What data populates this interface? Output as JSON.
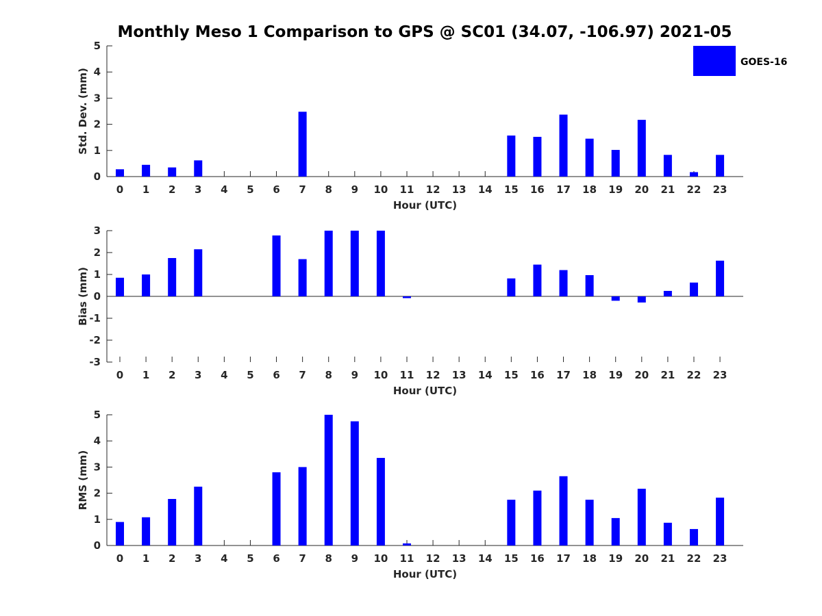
{
  "title": "Monthly Meso 1 Comparison to GPS @ SC01 (34.07, -106.97) 2021-05",
  "legend": {
    "label": "GOES-16",
    "color": "#0000FF"
  },
  "bar_color": "#0000FF",
  "chart_data": [
    {
      "type": "bar",
      "xlabel": "Hour (UTC)",
      "ylabel": "Std. Dev. (mm)",
      "ylim": [
        0,
        5
      ],
      "yticks": [
        "0",
        "1",
        "2",
        "3",
        "4",
        "5"
      ],
      "categories": [
        "0",
        "1",
        "2",
        "3",
        "4",
        "5",
        "6",
        "7",
        "8",
        "9",
        "10",
        "11",
        "12",
        "13",
        "14",
        "15",
        "16",
        "17",
        "18",
        "19",
        "20",
        "21",
        "22",
        "23"
      ],
      "series": [
        {
          "name": "GOES-16",
          "values": [
            0.28,
            0.45,
            0.35,
            0.62,
            0,
            0,
            0,
            2.48,
            0,
            0,
            0,
            0,
            0,
            0,
            0,
            1.57,
            1.52,
            2.37,
            1.45,
            1.02,
            2.17,
            0.83,
            0.17,
            0.83
          ]
        }
      ]
    },
    {
      "type": "bar",
      "xlabel": "Hour (UTC)",
      "ylabel": "Bias (mm)",
      "ylim": [
        -3,
        3
      ],
      "yticks": [
        "-3",
        "-2",
        "-1",
        "0",
        "1",
        "2",
        "3"
      ],
      "categories": [
        "0",
        "1",
        "2",
        "3",
        "4",
        "5",
        "6",
        "7",
        "8",
        "9",
        "10",
        "11",
        "12",
        "13",
        "14",
        "15",
        "16",
        "17",
        "18",
        "19",
        "20",
        "21",
        "22",
        "23"
      ],
      "series": [
        {
          "name": "GOES-16",
          "values": [
            0.85,
            1.0,
            1.75,
            2.15,
            0,
            0,
            2.78,
            1.7,
            3.0,
            3.0,
            3.0,
            -0.08,
            0,
            0,
            0,
            0.82,
            1.45,
            1.2,
            0.97,
            -0.2,
            -0.28,
            0.25,
            0.63,
            1.63
          ]
        }
      ]
    },
    {
      "type": "bar",
      "xlabel": "Hour (UTC)",
      "ylabel": "RMS (mm)",
      "ylim": [
        0,
        5
      ],
      "yticks": [
        "0",
        "1",
        "2",
        "3",
        "4",
        "5"
      ],
      "categories": [
        "0",
        "1",
        "2",
        "3",
        "4",
        "5",
        "6",
        "7",
        "8",
        "9",
        "10",
        "11",
        "12",
        "13",
        "14",
        "15",
        "16",
        "17",
        "18",
        "19",
        "20",
        "21",
        "22",
        "23"
      ],
      "series": [
        {
          "name": "GOES-16",
          "values": [
            0.9,
            1.08,
            1.78,
            2.25,
            0,
            0,
            2.8,
            3.0,
            5.0,
            4.75,
            3.35,
            0.08,
            0,
            0,
            0,
            1.75,
            2.1,
            2.65,
            1.75,
            1.05,
            2.17,
            0.87,
            0.63,
            1.83
          ]
        }
      ]
    }
  ]
}
